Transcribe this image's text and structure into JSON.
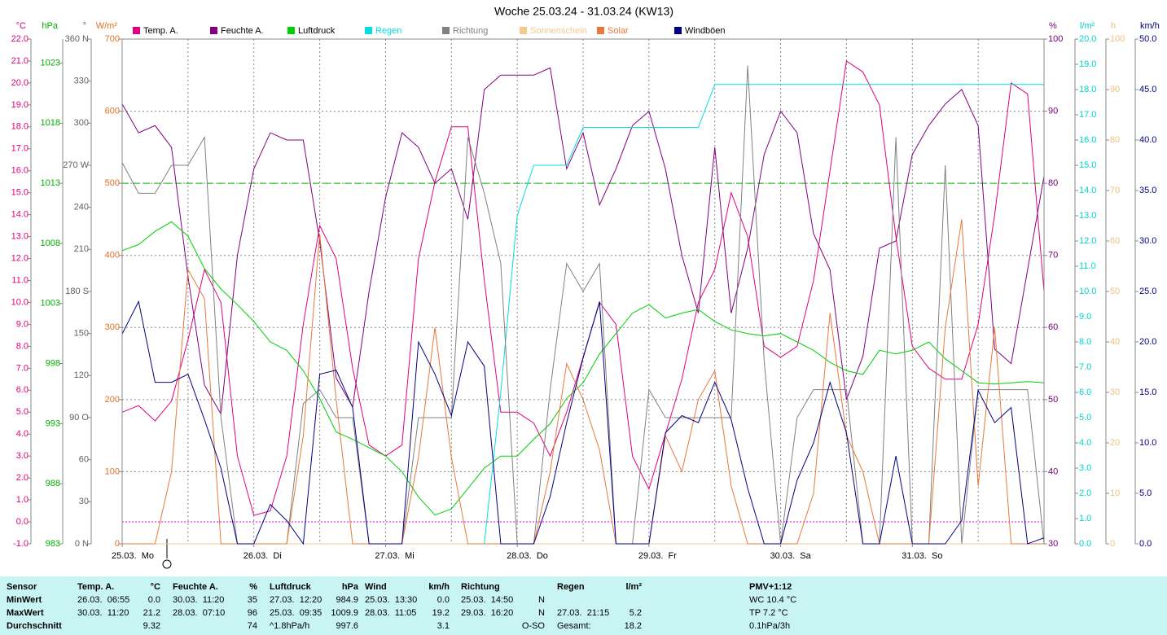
{
  "chart_data": {
    "type": "line",
    "title": "Woche 25.03.24 - 31.03.24 (KW13)",
    "xlim": [
      0,
      168
    ],
    "xticks": [
      {
        "value": 0,
        "label": "25.03.  Mo"
      },
      {
        "value": 24,
        "label": "26.03.  Di"
      },
      {
        "value": 48,
        "label": "27.03.  Mi"
      },
      {
        "value": 72,
        "label": "28.03.  Do"
      },
      {
        "value": 96,
        "label": "29.03.  Fr"
      },
      {
        "value": 120,
        "label": "30.03.  Sa"
      },
      {
        "value": 144,
        "label": "31.03.  So"
      }
    ],
    "x": [
      0,
      3,
      6,
      9,
      12,
      15,
      18,
      21,
      24,
      27,
      30,
      33,
      36,
      39,
      42,
      45,
      48,
      51,
      54,
      57,
      60,
      63,
      66,
      69,
      72,
      75,
      78,
      81,
      84,
      87,
      90,
      93,
      96,
      99,
      102,
      105,
      108,
      111,
      114,
      117,
      120,
      123,
      126,
      129,
      132,
      135,
      138,
      141,
      144,
      147,
      150,
      153,
      156,
      159,
      162,
      165,
      168
    ],
    "axes": [
      {
        "name": "temp",
        "unit": "°C",
        "side": "left",
        "color": "#e0007f",
        "lim": [
          -1,
          22
        ],
        "ticks": [
          {
            "value": -1,
            "label": "-1.0"
          },
          {
            "value": 0,
            "label": "0.0"
          },
          {
            "value": 1,
            "label": "1.0"
          },
          {
            "value": 2,
            "label": "2.0"
          },
          {
            "value": 3,
            "label": "3.0"
          },
          {
            "value": 4,
            "label": "4.0"
          },
          {
            "value": 5,
            "label": "5.0"
          },
          {
            "value": 6,
            "label": "6.0"
          },
          {
            "value": 7,
            "label": "7.0"
          },
          {
            "value": 8,
            "label": "8.0"
          },
          {
            "value": 9,
            "label": "9.0"
          },
          {
            "value": 10,
            "label": "10.0"
          },
          {
            "value": 11,
            "label": "11.0"
          },
          {
            "value": 12,
            "label": "12.0"
          },
          {
            "value": 13,
            "label": "13.0"
          },
          {
            "value": 14,
            "label": "14.0"
          },
          {
            "value": 15,
            "label": "15.0"
          },
          {
            "value": 16,
            "label": "16.0"
          },
          {
            "value": 17,
            "label": "17.0"
          },
          {
            "value": 18,
            "label": "18.0"
          },
          {
            "value": 19,
            "label": "19.0"
          },
          {
            "value": 20,
            "label": "20.0"
          },
          {
            "value": 21,
            "label": "21.0"
          },
          {
            "value": 22,
            "label": "22.0"
          }
        ]
      },
      {
        "name": "hpa",
        "unit": "hPa",
        "side": "left",
        "color": "#00b000",
        "lim": [
          983,
          1025
        ],
        "ticks": [
          983,
          988,
          993,
          998,
          1003,
          1008,
          1013,
          1018,
          1023
        ]
      },
      {
        "name": "deg",
        "unit": "°",
        "side": "left",
        "color": "#606060",
        "lim": [
          0,
          360
        ],
        "ticks": [
          {
            "value": 0,
            "label": "0 N"
          },
          30,
          60,
          {
            "value": 90,
            "label": "90 O"
          },
          120,
          150,
          {
            "value": 180,
            "label": "180 S"
          },
          210,
          240,
          {
            "value": 270,
            "label": "270 W"
          },
          300,
          330,
          {
            "value": 360,
            "label": "360 N"
          }
        ]
      },
      {
        "name": "solar",
        "unit": "W/m²",
        "side": "left",
        "color": "#e07020",
        "lim": [
          0,
          700
        ],
        "grid": true,
        "ticks": [
          0,
          100,
          200,
          300,
          400,
          500,
          600,
          700
        ]
      },
      {
        "name": "hum",
        "unit": "%",
        "side": "right",
        "color": "#700070",
        "lim": [
          30,
          100
        ],
        "ticks": [
          30,
          40,
          50,
          60,
          70,
          80,
          90,
          100
        ]
      },
      {
        "name": "rain",
        "unit": "l/m²",
        "side": "right",
        "color": "#00d0d0",
        "lim": [
          0,
          20
        ],
        "ticks": [
          {
            "value": 0,
            "label": "0.0"
          },
          {
            "value": 1,
            "label": "1.0"
          },
          {
            "value": 2,
            "label": "2.0"
          },
          {
            "value": 3,
            "label": "3.0"
          },
          {
            "value": 4,
            "label": "4.0"
          },
          {
            "value": 5,
            "label": "5.0"
          },
          {
            "value": 6,
            "label": "6.0"
          },
          {
            "value": 7,
            "label": "7.0"
          },
          {
            "value": 8,
            "label": "8.0"
          },
          {
            "value": 9,
            "label": "9.0"
          },
          {
            "value": 10,
            "label": "10.0"
          },
          {
            "value": 11,
            "label": "11.0"
          },
          {
            "value": 12,
            "label": "12.0"
          },
          {
            "value": 13,
            "label": "13.0"
          },
          {
            "value": 14,
            "label": "14.0"
          },
          {
            "value": 15,
            "label": "15.0"
          },
          {
            "value": 16,
            "label": "16.0"
          },
          {
            "value": 17,
            "label": "17.0"
          },
          {
            "value": 18,
            "label": "18.0"
          },
          {
            "value": 19,
            "label": "19.0"
          },
          {
            "value": 20,
            "label": "20.0"
          }
        ]
      },
      {
        "name": "sun",
        "unit": "h",
        "side": "right",
        "color": "#f0c080",
        "lim": [
          0,
          100
        ],
        "ticks": [
          0,
          10,
          20,
          30,
          40,
          50,
          60,
          70,
          80,
          90,
          100
        ]
      },
      {
        "name": "wind",
        "unit": "km/h",
        "side": "right",
        "color": "#000080",
        "lim": [
          0,
          50
        ],
        "ticks": [
          {
            "value": 0,
            "label": "0.0"
          },
          {
            "value": 5,
            "label": "5.0"
          },
          {
            "value": 10,
            "label": "10.0"
          },
          {
            "value": 15,
            "label": "15.0"
          },
          {
            "value": 20,
            "label": "20.0"
          },
          {
            "value": 25,
            "label": "25.0"
          },
          {
            "value": 30,
            "label": "30.0"
          },
          {
            "value": 35,
            "label": "35.0"
          },
          {
            "value": 40,
            "label": "40.0"
          },
          {
            "value": 45,
            "label": "45.0"
          },
          {
            "value": 50,
            "label": "50.0"
          }
        ]
      }
    ],
    "ref_lines": [
      {
        "axis": "temp",
        "value": 0,
        "color": "#e000e0"
      },
      {
        "axis": "hpa",
        "value": 1013,
        "color": "#00c000"
      }
    ],
    "series": [
      {
        "name": "Temp. A.",
        "axis": "temp",
        "color": "#e0007f",
        "values": [
          5.0,
          5.3,
          4.6,
          5.5,
          8.3,
          11.5,
          10.0,
          3.0,
          0.3,
          0.5,
          3.0,
          9.0,
          13.5,
          12.0,
          7.0,
          3.5,
          3.0,
          3.5,
          12.0,
          15.5,
          18.0,
          18.0,
          11.0,
          5.0,
          5.0,
          4.5,
          3.0,
          5.0,
          7.5,
          10.0,
          9.0,
          3.0,
          1.5,
          4.0,
          6.5,
          10.0,
          11.5,
          15.0,
          13.0,
          8.0,
          7.5,
          8.0,
          11.0,
          16.0,
          21.0,
          20.5,
          19.0,
          13.0,
          8.0,
          7.0,
          6.5,
          6.5,
          9.0,
          14.0,
          20.0,
          19.5,
          10.5
        ]
      },
      {
        "name": "Feuchte A.",
        "axis": "hum",
        "color": "#800080",
        "values": [
          91,
          87,
          88,
          85,
          67,
          52,
          48,
          70,
          82,
          87,
          86,
          86,
          72,
          53,
          49,
          65,
          78,
          87,
          85,
          80,
          82,
          75,
          93,
          95,
          95,
          95,
          96,
          82,
          87,
          77,
          82,
          88,
          90,
          82,
          70,
          62,
          85,
          62,
          71,
          84,
          90,
          87,
          73,
          68,
          50,
          56,
          71,
          72,
          84,
          88,
          91,
          93,
          88,
          57,
          55,
          68,
          81
        ]
      },
      {
        "name": "Luftdruck",
        "axis": "hpa",
        "color": "#00d000",
        "values": [
          1007.4,
          1007.9,
          1009,
          1009.8,
          1008.6,
          1005.9,
          1004.2,
          1002.9,
          1001.5,
          999.8,
          999.1,
          997.4,
          995.1,
          992.3,
          991.7,
          991,
          990.3,
          989,
          986.9,
          985.4,
          985.9,
          987.6,
          989.3,
          990.3,
          990.3,
          991.7,
          993,
          995.1,
          996.4,
          998.8,
          1000.5,
          1002.2,
          1002.9,
          1001.8,
          1002.2,
          1002.5,
          1001.5,
          1000.8,
          1000.5,
          1000.3,
          1000.5,
          999.8,
          999.1,
          998.1,
          997.4,
          997.1,
          999.1,
          998.8,
          999.1,
          999.8,
          998.4,
          997.4,
          996.4,
          996.3,
          996.4,
          996.5,
          996.4
        ]
      },
      {
        "name": "Regen",
        "axis": "rain",
        "color": "#00e0e0",
        "values": [
          0,
          0,
          0,
          0,
          0,
          0,
          0,
          0,
          0,
          0,
          0,
          0,
          0,
          0,
          0,
          0,
          0,
          0,
          0,
          0,
          0,
          0,
          0,
          6,
          13,
          15,
          15,
          15,
          16.5,
          16.5,
          16.5,
          16.5,
          16.5,
          16.5,
          16.5,
          16.5,
          18.2,
          18.2,
          18.2,
          18.2,
          18.2,
          18.2,
          18.2,
          18.2,
          18.2,
          18.2,
          18.2,
          18.2,
          18.2,
          18.2,
          18.2,
          18.2,
          18.2,
          18.2,
          18.2,
          18.2,
          18.2
        ]
      },
      {
        "name": "Richtung",
        "axis": "deg",
        "color": "#808080",
        "values": [
          272,
          250,
          250,
          270,
          270,
          290,
          90,
          0,
          0,
          0,
          0,
          100,
          110,
          90,
          90,
          0,
          0,
          0,
          90,
          90,
          90,
          290,
          250,
          200,
          0,
          0,
          110,
          200,
          180,
          200,
          0,
          0,
          110,
          90,
          90,
          90,
          90,
          90,
          341,
          130,
          0,
          90,
          110,
          110,
          110,
          0,
          0,
          290,
          0,
          0,
          270,
          0,
          110,
          110,
          110,
          110,
          0
        ]
      },
      {
        "name": "Sonnenschein",
        "axis": "sun",
        "color": "#f5c890",
        "values": [
          0,
          0,
          0,
          0,
          0,
          0,
          0,
          0,
          0,
          0,
          0,
          0,
          0,
          0,
          0,
          0,
          0,
          0,
          0,
          0,
          0,
          0,
          0,
          0,
          0,
          0,
          0,
          0,
          0,
          0,
          0,
          0,
          0,
          0,
          0,
          0,
          0,
          0,
          0,
          0,
          0,
          0,
          0,
          0,
          0,
          0,
          0,
          0,
          0,
          0,
          0,
          0,
          0,
          0,
          0,
          0,
          0
        ]
      },
      {
        "name": "Solar",
        "axis": "solar",
        "color": "#e8783c",
        "values": [
          0,
          0,
          0,
          100,
          380,
          340,
          0,
          0,
          0,
          0,
          0,
          150,
          430,
          200,
          0,
          0,
          0,
          0,
          120,
          300,
          120,
          0,
          0,
          0,
          0,
          0,
          100,
          250,
          200,
          130,
          0,
          0,
          0,
          150,
          100,
          200,
          240,
          80,
          0,
          0,
          0,
          0,
          70,
          320,
          150,
          100,
          0,
          0,
          0,
          0,
          300,
          450,
          80,
          300,
          0,
          0,
          0
        ]
      },
      {
        "name": "Windböen",
        "axis": "wind",
        "color": "#000080",
        "values": [
          20.8,
          24,
          16,
          16,
          16.8,
          12.3,
          7.5,
          0,
          0,
          3.9,
          2.3,
          0,
          16.8,
          17.2,
          13.5,
          0,
          0,
          0,
          20,
          16.8,
          12.7,
          20,
          17.6,
          0,
          0,
          0,
          4.7,
          12,
          18.4,
          24,
          0,
          0,
          0,
          11,
          12.7,
          12,
          16,
          12.3,
          5.5,
          0,
          0,
          6.3,
          10,
          16,
          11,
          0,
          0,
          8.7,
          0,
          0,
          0,
          2.3,
          15.2,
          12,
          13.5,
          0,
          0.6
        ]
      }
    ]
  },
  "stats": {
    "row_labels": [
      "Sensor",
      "MinWert",
      "MaxWert",
      "Durchschnitt"
    ],
    "groups": [
      {
        "title": "Temp. A.",
        "unit": "°C",
        "rows": [
          [
            "26.03.  06:55",
            "0.0"
          ],
          [
            "30.03.  11:20",
            "21.2"
          ],
          [
            "9.32"
          ]
        ]
      },
      {
        "title": "Feuchte A.",
        "unit": "%",
        "rows": [
          [
            "30.03.  11:20",
            "35"
          ],
          [
            "28.03.  07:10",
            "96"
          ],
          [
            "74"
          ]
        ]
      },
      {
        "title": "Luftdruck",
        "unit": "hPa",
        "rows": [
          [
            "27.03.  12:20",
            "984.9"
          ],
          [
            "25.03.  09:35",
            "1009.9"
          ],
          [
            "^1.8hPa/h",
            "997.6"
          ]
        ]
      },
      {
        "title": "Wind",
        "unit": "km/h",
        "rows": [
          [
            "25.03.  13:30",
            "0.0"
          ],
          [
            "28.03.  11:05",
            "19.2"
          ],
          [
            "3.1"
          ]
        ]
      },
      {
        "title": "Richtung",
        "rows": [
          [
            "25.03.  14:50",
            "N"
          ],
          [
            "29.03.  16:20",
            "N"
          ],
          [
            "O-SO"
          ]
        ]
      },
      {
        "title": "Regen",
        "unit": "l/m²",
        "rows": [
          null,
          [
            "27.03.  21:15",
            "5.2"
          ],
          [
            "Gesamt:",
            "18.2"
          ]
        ]
      }
    ],
    "pmv": {
      "title": "PMV+1:12",
      "lines": [
        "WC 10.4 °C",
        "TP 7.2 °C",
        "0.1hPa/3h"
      ]
    }
  }
}
